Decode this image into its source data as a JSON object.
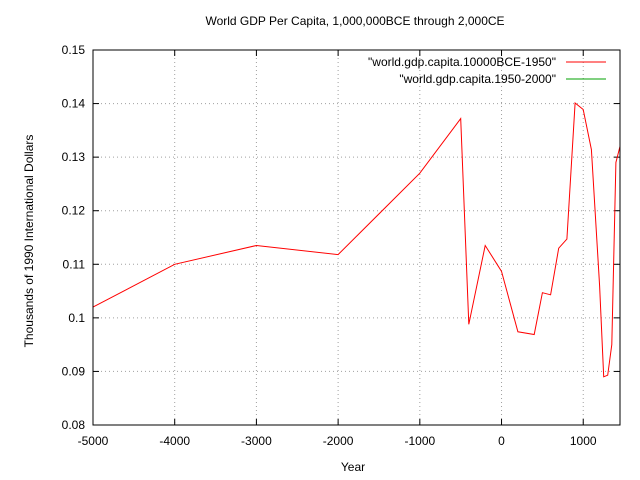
{
  "chart_data": {
    "type": "line",
    "title": "World GDP Per Capita, 1,000,000BCE through 2,000CE",
    "xlabel": "Year",
    "ylabel": "Thousands of 1990 International Dollars",
    "xlim": [
      -5000,
      1450
    ],
    "ylim": [
      0.08,
      0.15
    ],
    "x_ticks": [
      -5000,
      -4000,
      -3000,
      -2000,
      -1000,
      0,
      1000
    ],
    "y_ticks": [
      0.08,
      0.09,
      0.1,
      0.11,
      0.12,
      0.13,
      0.14,
      0.15
    ],
    "x_tick_labels": [
      "-5000",
      "-4000",
      "-3000",
      "-2000",
      "-1000",
      "0",
      "1000"
    ],
    "y_tick_labels": [
      "0.08",
      "0.09",
      "0.1",
      "0.11",
      "0.12",
      "0.13",
      "0.14",
      "0.15"
    ],
    "grid": true,
    "legend_position": "top-right",
    "series": [
      {
        "name": "\"world.gdp.capita.10000BCE-1950\"",
        "color": "#ff0000",
        "points": [
          [
            -5000,
            0.102
          ],
          [
            -4000,
            0.11
          ],
          [
            -3000,
            0.1135
          ],
          [
            -2000,
            0.1118
          ],
          [
            -1000,
            0.127
          ],
          [
            -500,
            0.1372
          ],
          [
            -400,
            0.0988
          ],
          [
            -200,
            0.1135
          ],
          [
            0,
            0.1087
          ],
          [
            200,
            0.0974
          ],
          [
            400,
            0.0969
          ],
          [
            500,
            0.1047
          ],
          [
            600,
            0.1043
          ],
          [
            700,
            0.113
          ],
          [
            800,
            0.1147
          ],
          [
            900,
            0.1401
          ],
          [
            1000,
            0.1389
          ],
          [
            1100,
            0.1314
          ],
          [
            1200,
            0.106
          ],
          [
            1250,
            0.089
          ],
          [
            1300,
            0.0893
          ],
          [
            1350,
            0.095
          ],
          [
            1400,
            0.129
          ],
          [
            1450,
            0.132
          ]
        ]
      },
      {
        "name": "\"world.gdp.capita.1950-2000\"",
        "color": "#00a000",
        "points": []
      }
    ]
  }
}
